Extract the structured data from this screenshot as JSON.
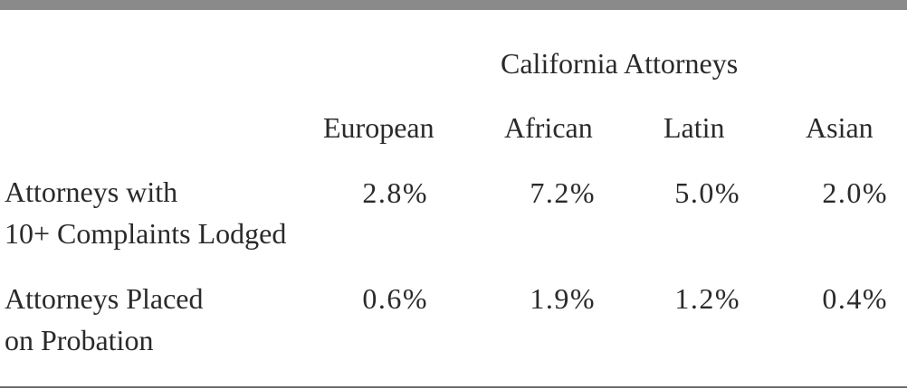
{
  "table": {
    "group_header": "California Attorneys",
    "columns": [
      "European",
      "African",
      "Latin",
      "Asian"
    ],
    "rows": [
      {
        "label_line1": "Attorneys with",
        "label_line2": "10+ Complaints Lodged",
        "values": [
          "2.8%",
          "7.2%",
          "5.0%",
          "2.0%"
        ]
      },
      {
        "label_line1": "Attorneys Placed",
        "label_line2": "on Probation",
        "values": [
          "0.6%",
          "1.9%",
          "1.2%",
          "0.4%"
        ]
      }
    ]
  }
}
